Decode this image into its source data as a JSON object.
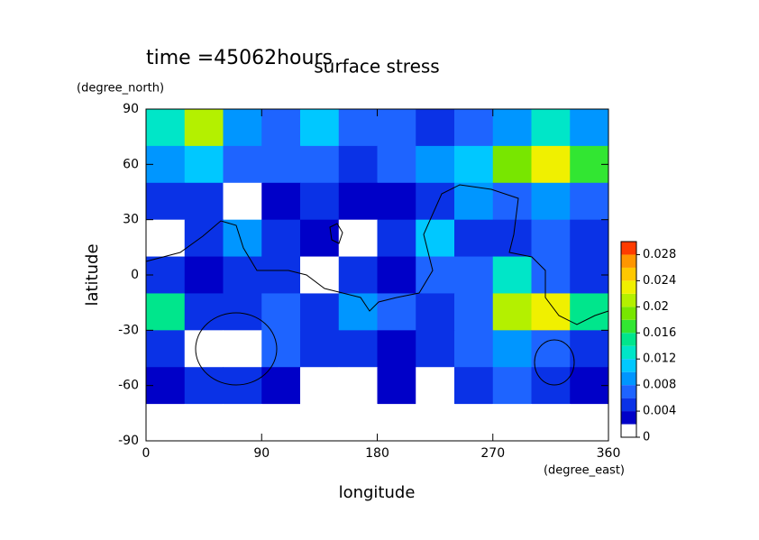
{
  "chart_data": {
    "type": "contour",
    "title": "surface stress",
    "subtitle": "time =45062hours",
    "x_label": "longitude",
    "x_unit": "(degree_east)",
    "y_label": "latitude",
    "y_unit": "(degree_north)",
    "x": [
      15,
      45,
      75,
      105,
      135,
      165,
      195,
      225,
      255,
      285,
      315,
      345
    ],
    "y": [
      80,
      60,
      40,
      20,
      0,
      -20,
      -40,
      -60,
      -80
    ],
    "z": [
      [
        0.012,
        0.02,
        0.008,
        0.006,
        0.01,
        0.006,
        0.006,
        0.005,
        0.006,
        0.008,
        0.012,
        0.008
      ],
      [
        0.008,
        0.01,
        0.006,
        0.006,
        0.006,
        0.004,
        0.006,
        0.008,
        0.01,
        0.018,
        0.022,
        0.016
      ],
      [
        0.004,
        0.004,
        0,
        0.003,
        0.004,
        0.003,
        0.003,
        0.004,
        0.008,
        0.006,
        0.008,
        0.006
      ],
      [
        0,
        0.004,
        0.008,
        0.004,
        0.003,
        0,
        0.004,
        0.01,
        0.004,
        0.004,
        0.006,
        0.004
      ],
      [
        0.004,
        0.003,
        0.005,
        0.004,
        0,
        0.004,
        0.003,
        0.006,
        0.006,
        0.012,
        0.006,
        0.004
      ],
      [
        0.014,
        0.004,
        0.004,
        0.006,
        0.004,
        0.008,
        0.006,
        0.004,
        0.006,
        0.02,
        0.022,
        0.014
      ],
      [
        0.004,
        0,
        0,
        0.006,
        0.004,
        0.004,
        0.002,
        0.004,
        0.006,
        0.008,
        0.006,
        0.004
      ],
      [
        0.003,
        0.004,
        0.005,
        0.003,
        0,
        0,
        0.002,
        0,
        0.004,
        0.006,
        0.004,
        0.003
      ],
      [
        0,
        0,
        0,
        0,
        0,
        0,
        0,
        0,
        0,
        0,
        0,
        0
      ]
    ],
    "xlim": [
      0,
      360
    ],
    "xticks": [
      0,
      90,
      180,
      270,
      360
    ],
    "ylim": [
      -90,
      90
    ],
    "yticks": [
      -90,
      -60,
      -30,
      0,
      30,
      60,
      90
    ],
    "levels": [
      0,
      0.002,
      0.004,
      0.006,
      0.008,
      0.01,
      0.012,
      0.014,
      0.016,
      0.018,
      0.02,
      0.022,
      0.024,
      0.026,
      0.028,
      0.03
    ],
    "colors": [
      "#ffffff",
      "#0000c8",
      "#0a32e6",
      "#1e64ff",
      "#0096ff",
      "#00c8ff",
      "#00e6c8",
      "#00e68c",
      "#32e632",
      "#78e600",
      "#b4f000",
      "#f0f000",
      "#ffc800",
      "#ff9600",
      "#ff3c00"
    ],
    "colorbar_ticks": [
      0,
      0.004,
      0.008,
      0.012,
      0.016,
      0.02,
      0.024,
      0.028
    ]
  }
}
